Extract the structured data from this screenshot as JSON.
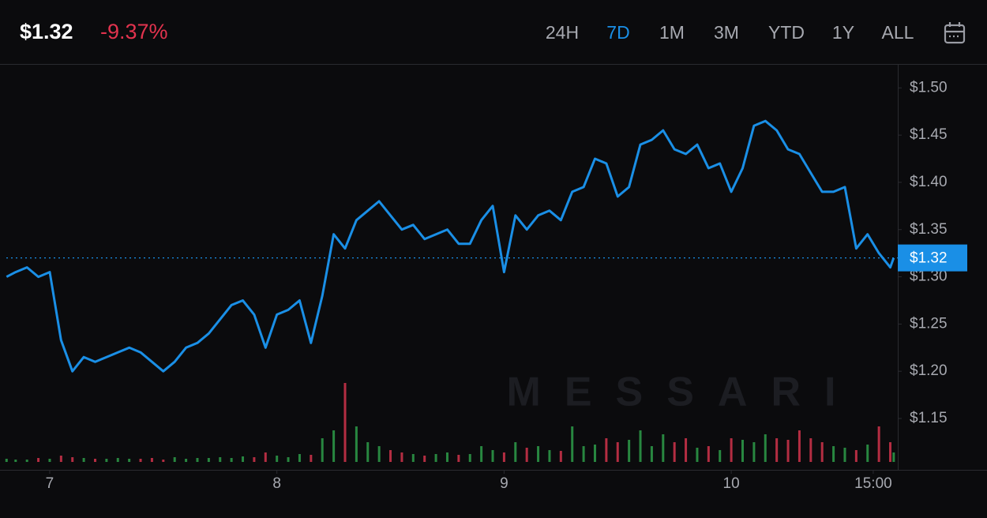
{
  "header": {
    "price": "$1.32",
    "change": "-9.37%",
    "ranges": [
      "24H",
      "7D",
      "1M",
      "3M",
      "YTD",
      "1Y",
      "ALL"
    ],
    "active_range": "7D"
  },
  "chart_data": {
    "type": "line",
    "watermark": "MESSARI",
    "color": "#1a8fe6",
    "grid": false,
    "x": [
      6.81,
      6.85,
      6.9,
      6.95,
      7.0,
      7.05,
      7.1,
      7.15,
      7.2,
      7.25,
      7.3,
      7.35,
      7.4,
      7.45,
      7.5,
      7.55,
      7.6,
      7.65,
      7.7,
      7.75,
      7.8,
      7.85,
      7.9,
      7.95,
      8.0,
      8.05,
      8.1,
      8.15,
      8.2,
      8.25,
      8.3,
      8.35,
      8.4,
      8.45,
      8.5,
      8.55,
      8.6,
      8.65,
      8.7,
      8.75,
      8.8,
      8.85,
      8.9,
      8.95,
      9.0,
      9.05,
      9.1,
      9.15,
      9.2,
      9.25,
      9.3,
      9.35,
      9.4,
      9.45,
      9.5,
      9.55,
      9.6,
      9.65,
      9.7,
      9.75,
      9.8,
      9.85,
      9.9,
      9.95,
      10.0,
      10.05,
      10.1,
      10.15,
      10.2,
      10.25,
      10.3,
      10.35,
      10.4,
      10.45,
      10.5,
      10.55,
      10.6,
      10.65,
      10.7,
      10.715
    ],
    "series": [
      {
        "values": [
          1.3,
          1.305,
          1.31,
          1.3,
          1.305,
          1.233,
          1.2,
          1.215,
          1.21,
          1.215,
          1.22,
          1.225,
          1.22,
          1.21,
          1.2,
          1.21,
          1.225,
          1.23,
          1.24,
          1.255,
          1.27,
          1.275,
          1.26,
          1.225,
          1.26,
          1.265,
          1.275,
          1.23,
          1.28,
          1.345,
          1.33,
          1.36,
          1.37,
          1.38,
          1.365,
          1.35,
          1.355,
          1.34,
          1.345,
          1.35,
          1.335,
          1.335,
          1.36,
          1.375,
          1.305,
          1.365,
          1.35,
          1.365,
          1.37,
          1.36,
          1.39,
          1.395,
          1.425,
          1.42,
          1.385,
          1.395,
          1.44,
          1.445,
          1.455,
          1.435,
          1.43,
          1.44,
          1.415,
          1.42,
          1.39,
          1.415,
          1.46,
          1.465,
          1.455,
          1.435,
          1.43,
          1.41,
          1.39,
          1.39,
          1.395,
          1.33,
          1.345,
          1.325,
          1.31,
          1.32
        ]
      }
    ],
    "volume": [
      4,
      3,
      3,
      5,
      4,
      8,
      6,
      5,
      4,
      4,
      5,
      4,
      4,
      5,
      3,
      6,
      4,
      5,
      5,
      6,
      5,
      7,
      6,
      12,
      8,
      6,
      10,
      9,
      30,
      40,
      100,
      45,
      25,
      20,
      15,
      12,
      10,
      8,
      10,
      12,
      9,
      10,
      20,
      15,
      12,
      25,
      18,
      20,
      15,
      14,
      45,
      20,
      22,
      30,
      25,
      28,
      40,
      20,
      35,
      25,
      30,
      18,
      20,
      15,
      30,
      28,
      25,
      35,
      30,
      28,
      40,
      30,
      25,
      20,
      18,
      15,
      22,
      45,
      25,
      12
    ],
    "volume_up_color": "#2e9e4a",
    "volume_down_color": "#d2344c",
    "xlim": [
      6.809,
      10.726
    ],
    "xticks": [
      7,
      8,
      9,
      10,
      {
        "value": 10.625,
        "label": "15:00"
      }
    ],
    "ylim": [
      1.104,
      1.522
    ],
    "yticks": [
      {
        "value": 1.15,
        "label": "$1.15"
      },
      {
        "value": 1.2,
        "label": "$1.20"
      },
      {
        "value": 1.25,
        "label": "$1.25"
      },
      {
        "value": 1.3,
        "label": "$1.30"
      },
      {
        "value": 1.35,
        "label": "$1.35"
      },
      {
        "value": 1.4,
        "label": "$1.40"
      },
      {
        "value": 1.45,
        "label": "$1.45"
      },
      {
        "value": 1.5,
        "label": "$1.50"
      }
    ],
    "last_price": {
      "value": 1.32,
      "label": "$1.32"
    }
  }
}
